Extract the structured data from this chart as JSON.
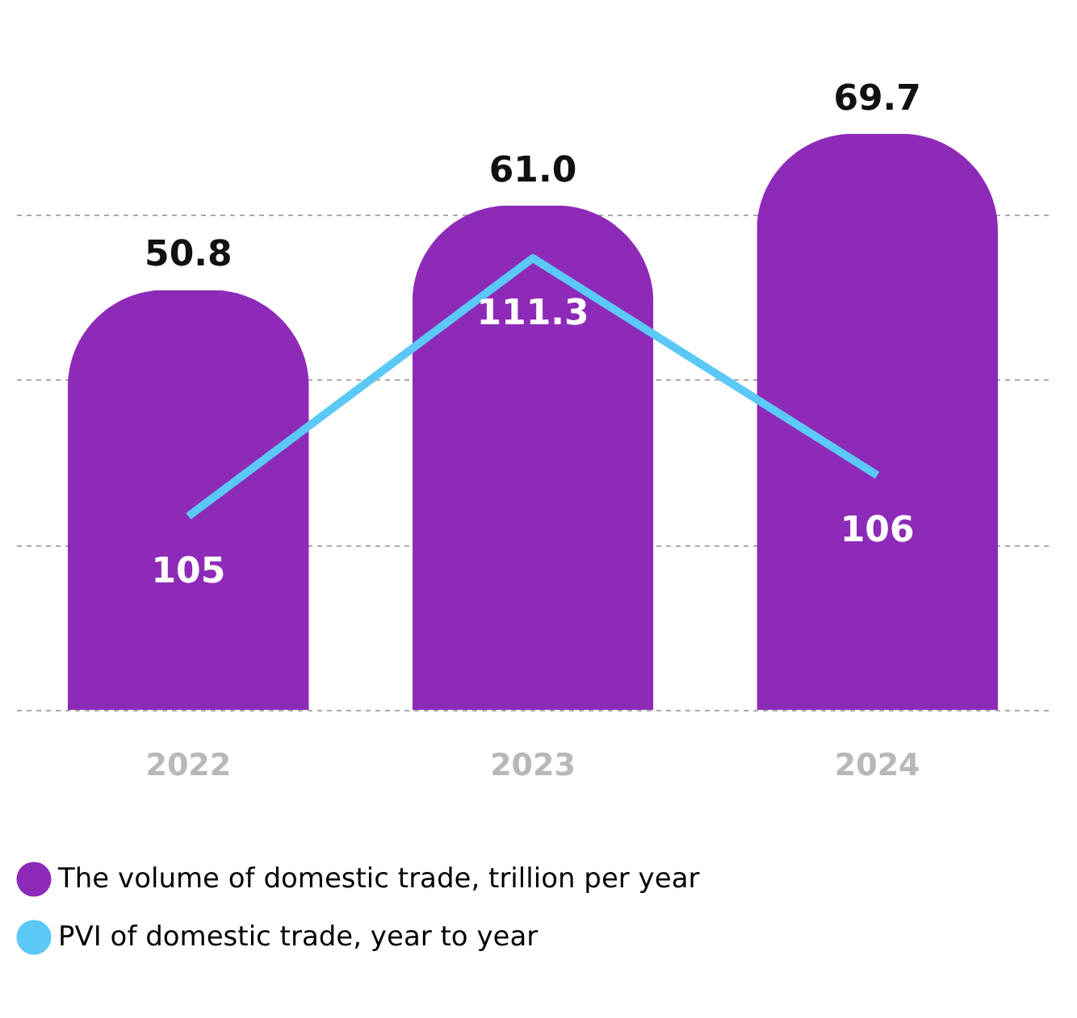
{
  "chart_data": {
    "type": "bar",
    "categories": [
      "2022",
      "2023",
      "2024"
    ],
    "series": [
      {
        "name": "The volume of domestic trade, trillion per year",
        "color": "#8e2ab8",
        "values": [
          50.8,
          61.0,
          69.7
        ],
        "value_labels": [
          "50.8",
          "61.0",
          "69.7"
        ]
      },
      {
        "name": "PVI of domestic trade, year to year",
        "type": "line",
        "axis": "y2",
        "color": "#5bc8f5",
        "values": [
          105,
          111.3,
          106
        ],
        "value_labels": [
          "105",
          "111.3",
          "106"
        ]
      }
    ],
    "grid": "y",
    "legend": "bottom",
    "tick_labels": "x"
  }
}
